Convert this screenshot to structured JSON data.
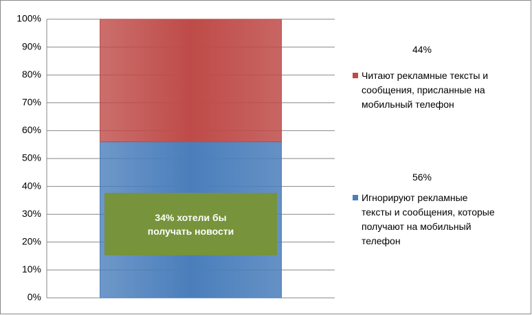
{
  "chart_data": {
    "type": "stacked_bar",
    "categories": [
      null
    ],
    "series": [
      {
        "name": "Игнорируют рекламные тексты и сообщения, которые получают на мобильный телефон",
        "color": "#4a7ebb",
        "values": [
          56
        ],
        "value_labels": [
          "56%"
        ]
      },
      {
        "name": "Читают рекламные тексты и сообщения, присланные на мобильный телефон",
        "color": "#be4b48",
        "values": [
          44
        ],
        "value_labels": [
          "44%"
        ]
      }
    ],
    "ylim": [
      0,
      100
    ],
    "yticks": [
      {
        "value": 0,
        "label": "0%"
      },
      {
        "value": 10,
        "label": "10%"
      },
      {
        "value": 20,
        "label": "20%"
      },
      {
        "value": 30,
        "label": "30%"
      },
      {
        "value": 40,
        "label": "40%"
      },
      {
        "value": 50,
        "label": "50%"
      },
      {
        "value": 60,
        "label": "60%"
      },
      {
        "value": 70,
        "label": "70%"
      },
      {
        "value": 80,
        "label": "80%"
      },
      {
        "value": 90,
        "label": "90%"
      },
      {
        "value": 100,
        "label": "100%"
      }
    ],
    "grid": true,
    "annotation": "34% хотели бы получать новости"
  }
}
